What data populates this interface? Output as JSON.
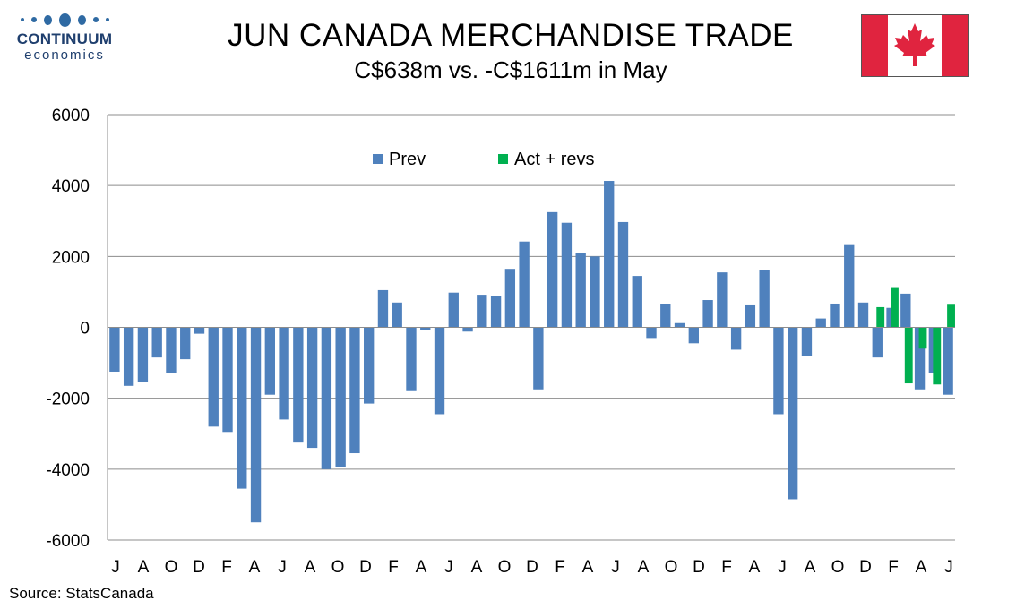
{
  "header": {
    "logo_word": "CONTINUUM",
    "logo_sub": "economics",
    "title": "JUN CANADA MERCHANDISE TRADE",
    "subtitle": "C$638m vs. -C$1611m in May",
    "source": "Source: StatsCanada"
  },
  "flag_icon": "canada-flag-icon",
  "colors": {
    "prev": "#4f81bd",
    "act": "#00b050",
    "flag_red": "#e0243f"
  },
  "chart_data": {
    "type": "bar",
    "title": "JUN CANADA MERCHANDISE TRADE",
    "subtitle": "C$638m vs. -C$1611m in May",
    "xlabel": "",
    "ylabel": "",
    "ylim": [
      -6000,
      6000
    ],
    "yticks": [
      "6000",
      "4000",
      "2000",
      "0",
      "-2000",
      "-4000",
      "-6000"
    ],
    "xtick_labels": [
      "J",
      "A",
      "O",
      "D",
      "F",
      "A",
      "J",
      "A",
      "O",
      "D",
      "F",
      "A",
      "J",
      "A",
      "O",
      "D",
      "F",
      "A",
      "J",
      "A",
      "O",
      "D",
      "F",
      "A",
      "J",
      "A",
      "O",
      "D",
      "F",
      "A",
      "J"
    ],
    "grid": true,
    "legend_position": "top-center",
    "series": [
      {
        "name": "Prev",
        "values": [
          -1250,
          -1650,
          -1550,
          -850,
          -1300,
          -900,
          -180,
          -2800,
          -2950,
          -4550,
          -5500,
          -1900,
          -2600,
          -3250,
          -3400,
          -4000,
          -3950,
          -3550,
          -2150,
          1050,
          700,
          -1800,
          -80,
          -2450,
          980,
          -120,
          920,
          880,
          1650,
          2420,
          -1750,
          3250,
          2950,
          2100,
          2000,
          4130,
          2970,
          1450,
          -300,
          650,
          120,
          -450,
          770,
          1550,
          -630,
          620,
          1620,
          -2450,
          -4850,
          -800,
          250,
          670,
          2320,
          700,
          -850,
          550,
          950,
          -1750,
          -1300,
          -1900
        ]
      },
      {
        "name": "Act + revs",
        "values": [
          570,
          1110,
          -1580,
          -600,
          -1611,
          638
        ]
      }
    ]
  }
}
